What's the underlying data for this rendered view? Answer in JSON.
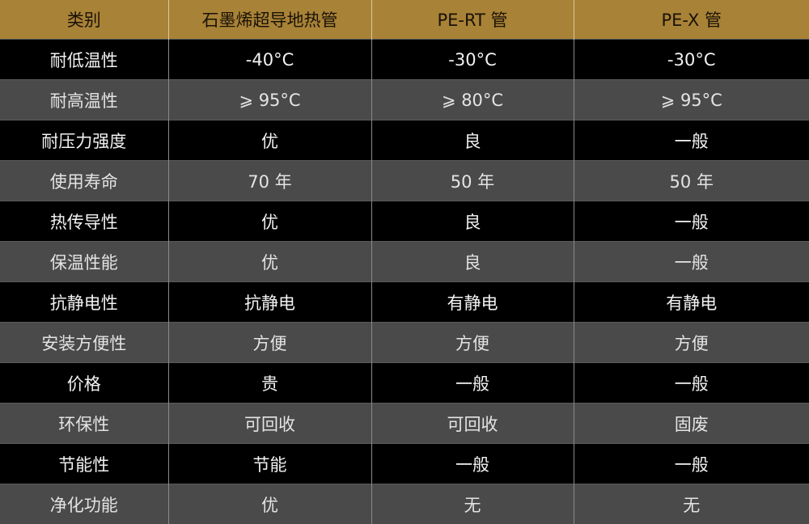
{
  "header": [
    "类别",
    "石墨烯超导地热管",
    "PE-RT 管",
    "PE-X 管"
  ],
  "rows": [
    [
      "耐低温性",
      "-40°C",
      "-30°C",
      "-30°C"
    ],
    [
      "耐高温性",
      "⩾ 95°C",
      "⩾ 80°C",
      "⩾ 95°C"
    ],
    [
      "耐压力强度",
      "优",
      "良",
      "一般"
    ],
    [
      "使用寿命",
      "70 年",
      "50 年",
      "50 年"
    ],
    [
      "热传导性",
      "优",
      "良",
      "一般"
    ],
    [
      "保温性能",
      "优",
      "良",
      "一般"
    ],
    [
      "抗静电性",
      "抗静电",
      "有静电",
      "有静电"
    ],
    [
      "安装方便性",
      "方便",
      "方便",
      "方便"
    ],
    [
      "价格",
      "贵",
      "一般",
      "一般"
    ],
    [
      "环保性",
      "可回收",
      "可回收",
      "固废"
    ],
    [
      "节能性",
      "节能",
      "一般",
      "一般"
    ],
    [
      "净化功能",
      "优",
      "无",
      "无"
    ]
  ],
  "colors": {
    "header_bg": "#a88236",
    "row_dark": "#000000",
    "row_gray": "#4a4a4a"
  }
}
